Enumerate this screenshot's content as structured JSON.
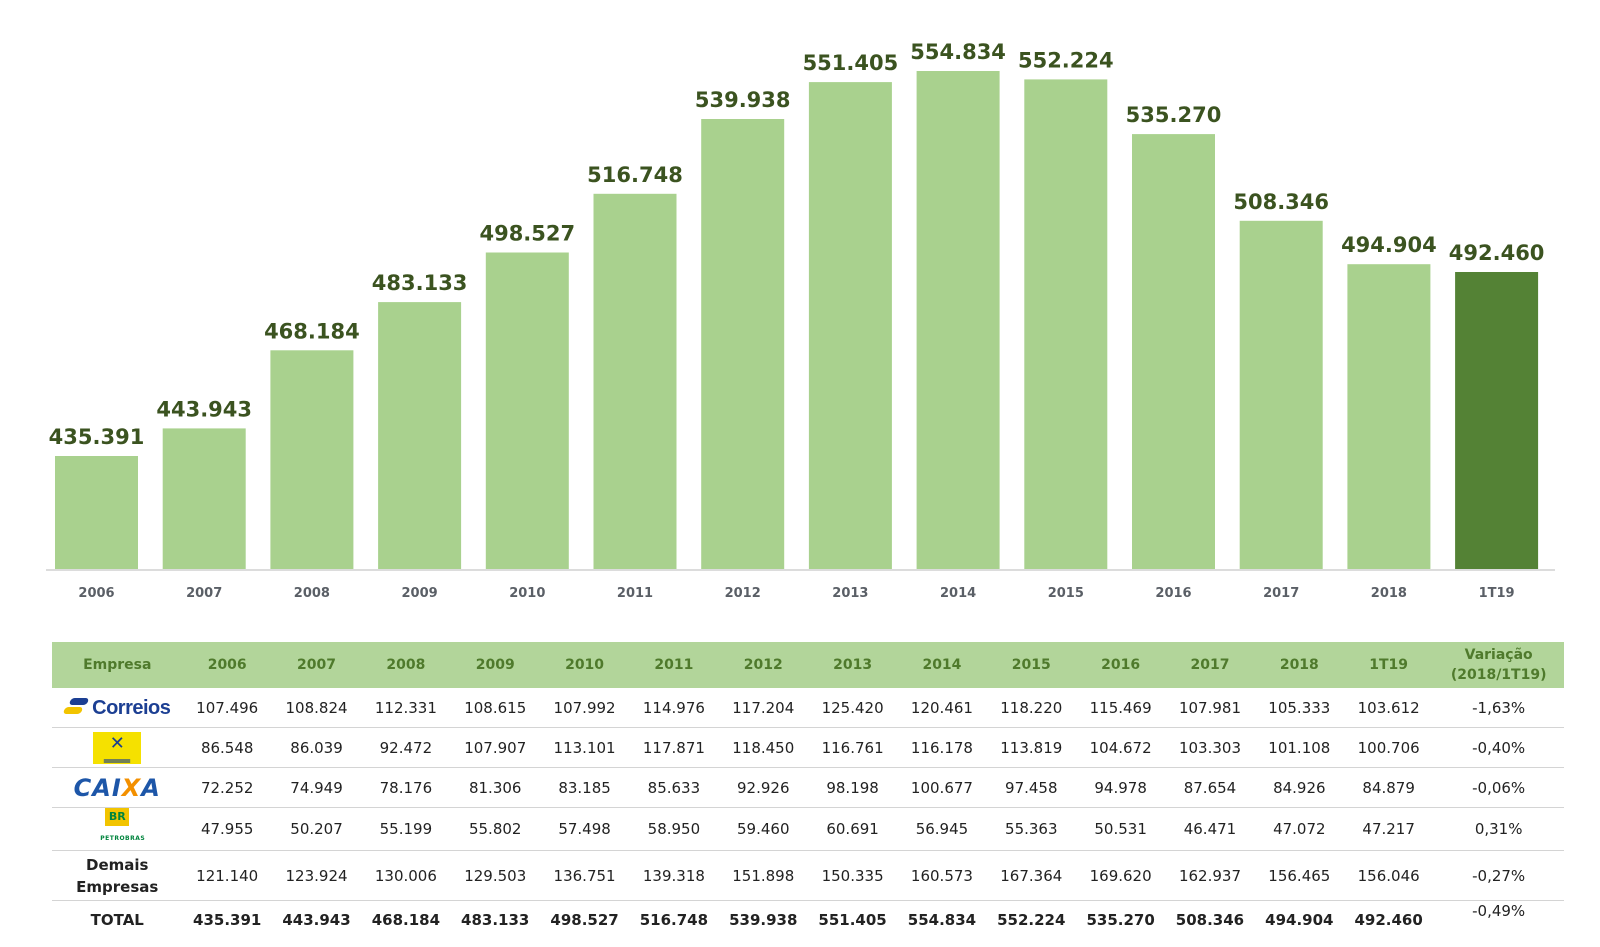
{
  "colors": {
    "bar": "#a9d18e",
    "bar_highlight": "#548235",
    "value_label": "#3b5320",
    "table_header_bg": "#b2d59a",
    "table_header_text": "#4f7a2c"
  },
  "chart_data": {
    "type": "bar",
    "categories": [
      "2006",
      "2007",
      "2008",
      "2009",
      "2010",
      "2011",
      "2012",
      "2013",
      "2014",
      "2015",
      "2016",
      "2017",
      "2018",
      "1T19"
    ],
    "values": [
      435391,
      443943,
      468184,
      483133,
      498527,
      516748,
      539938,
      551405,
      554834,
      552224,
      535270,
      508346,
      494904,
      492460
    ],
    "value_labels": [
      "435.391",
      "443.943",
      "468.184",
      "483.133",
      "498.527",
      "516.748",
      "539.938",
      "551.405",
      "554.834",
      "552.224",
      "535.270",
      "508.346",
      "494.904",
      "492.460"
    ],
    "highlighted_category": "1T19",
    "title": "",
    "xlabel": "",
    "ylabel": "",
    "grid": false,
    "legend": "none"
  },
  "table": {
    "headers": [
      "Empresa",
      "2006",
      "2007",
      "2008",
      "2009",
      "2010",
      "2011",
      "2012",
      "2013",
      "2014",
      "2015",
      "2016",
      "2017",
      "2018",
      "1T19",
      "Variação (2018/1T19)"
    ],
    "rows": [
      {
        "company": "Correios",
        "logo": "correios-logo",
        "values": [
          "107.496",
          "108.824",
          "112.331",
          "108.615",
          "107.992",
          "114.976",
          "117.204",
          "125.420",
          "120.461",
          "118.220",
          "115.469",
          "107.981",
          "105.333",
          "103.612"
        ],
        "variation": "-1,63%"
      },
      {
        "company": "Banco do Brasil",
        "logo": "banco-do-brasil-logo",
        "values": [
          "86.548",
          "86.039",
          "92.472",
          "107.907",
          "113.101",
          "117.871",
          "118.450",
          "116.761",
          "116.178",
          "113.819",
          "104.672",
          "103.303",
          "101.108",
          "100.706"
        ],
        "variation": "-0,40%"
      },
      {
        "company": "CAIXA",
        "logo": "caixa-logo",
        "values": [
          "72.252",
          "74.949",
          "78.176",
          "81.306",
          "83.185",
          "85.633",
          "92.926",
          "98.198",
          "100.677",
          "97.458",
          "94.978",
          "87.654",
          "84.926",
          "84.879"
        ],
        "variation": "-0,06%"
      },
      {
        "company": "Petrobras",
        "logo": "petrobras-logo",
        "values": [
          "47.955",
          "50.207",
          "55.199",
          "55.802",
          "57.498",
          "58.950",
          "59.460",
          "60.691",
          "56.945",
          "55.363",
          "50.531",
          "46.471",
          "47.072",
          "47.217"
        ],
        "variation": "0,31%"
      },
      {
        "company": "Demais Empresas",
        "logo": "",
        "values": [
          "121.140",
          "123.924",
          "130.006",
          "129.503",
          "136.751",
          "139.318",
          "151.898",
          "150.335",
          "160.573",
          "167.364",
          "169.620",
          "162.937",
          "156.465",
          "156.046"
        ],
        "variation": "-0,27%"
      },
      {
        "company": "TOTAL",
        "logo": "",
        "values": [
          "435.391",
          "443.943",
          "468.184",
          "483.133",
          "498.527",
          "516.748",
          "539.938",
          "551.405",
          "554.834",
          "552.224",
          "535.270",
          "508.346",
          "494.904",
          "492.460"
        ],
        "variation": "-0,49%"
      }
    ],
    "logo_text": {
      "correios": "Correios",
      "caixa_a": "CAI",
      "caixa_x": "X",
      "caixa_b": "A",
      "petro_box": "BR",
      "petro_text": "PETROBRAS",
      "demais_1": "Demais",
      "demais_2": "Empresas"
    }
  }
}
